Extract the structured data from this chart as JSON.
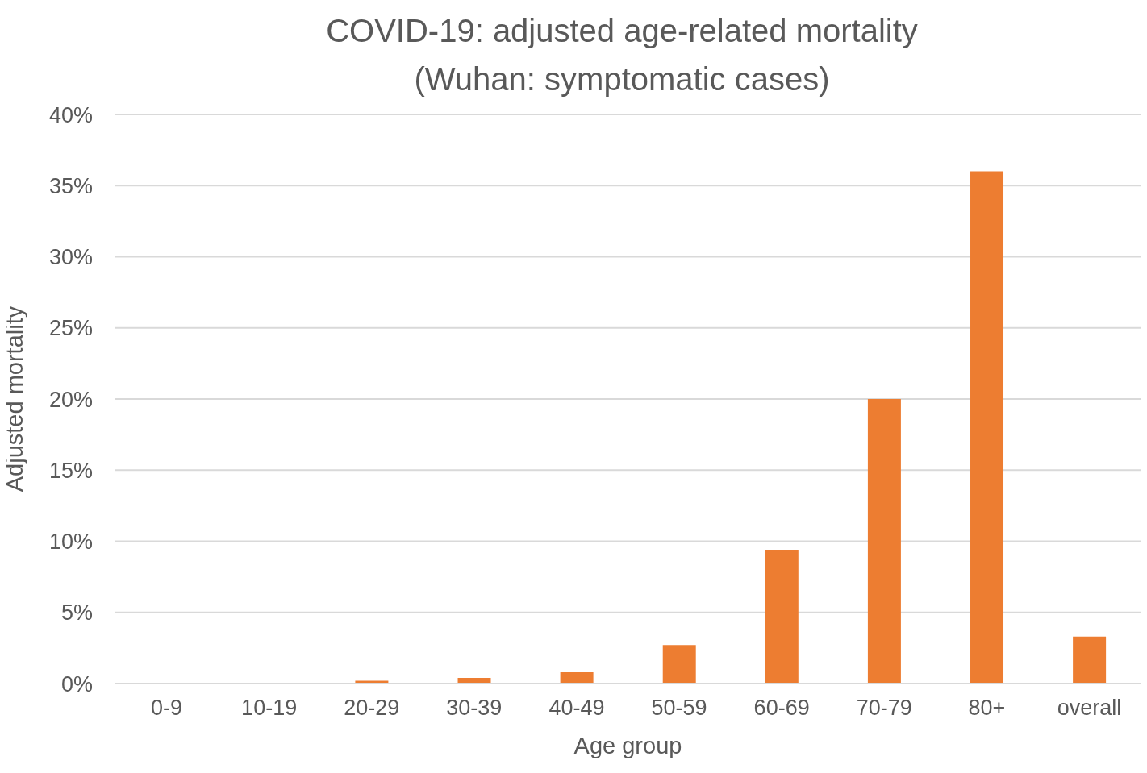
{
  "chart_data": {
    "type": "bar",
    "title": "COVID-19: adjusted age-related mortality\n(Wuhan: symptomatic cases)",
    "xlabel": "Age group",
    "ylabel": "Adjusted mortality",
    "categories": [
      "0-9",
      "10-19",
      "20-29",
      "30-39",
      "40-49",
      "50-59",
      "60-69",
      "70-79",
      "80+",
      "overall"
    ],
    "values": [
      0,
      null,
      0.2,
      0.4,
      0.8,
      2.7,
      9.4,
      20,
      36,
      3.3
    ],
    "color": "#ed7d31",
    "ylim": [
      0,
      40
    ],
    "yticks": [
      {
        "value": 0,
        "label": "0%"
      },
      {
        "value": 5,
        "label": "5%"
      },
      {
        "value": 10,
        "label": "10%"
      },
      {
        "value": 15,
        "label": "15%"
      },
      {
        "value": 20,
        "label": "20%"
      },
      {
        "value": 25,
        "label": "25%"
      },
      {
        "value": 30,
        "label": "30%"
      },
      {
        "value": 35,
        "label": "35%"
      },
      {
        "value": 40,
        "label": "40%"
      }
    ],
    "grid": "y"
  }
}
